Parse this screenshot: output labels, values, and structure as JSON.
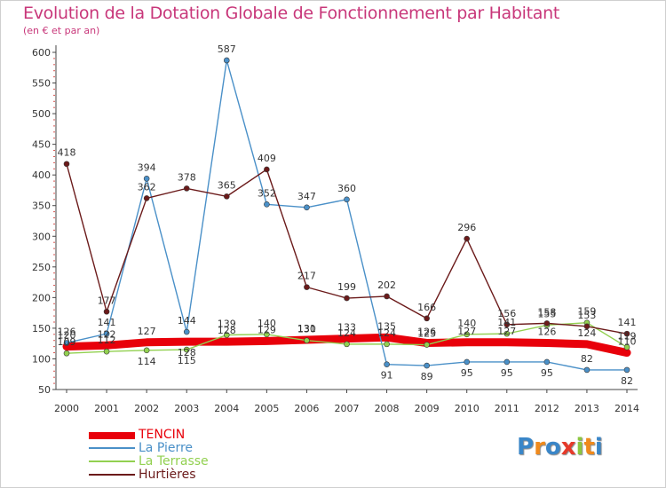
{
  "title": "Evolution de la Dotation Globale de Fonctionnement par Habitant",
  "subtitle": "(en € et par an)",
  "chart_data": {
    "type": "line",
    "x": [
      "2000",
      "2001",
      "2002",
      "2003",
      "2004",
      "2005",
      "2006",
      "2007",
      "2008",
      "2009",
      "2010",
      "2011",
      "2012",
      "2013",
      "2014"
    ],
    "ylim": [
      50,
      600
    ],
    "yticks": [
      "50",
      "100",
      "150",
      "200",
      "250",
      "300",
      "350",
      "400",
      "450",
      "500",
      "550",
      "600"
    ],
    "grid": false,
    "legend_position": "bottom-left",
    "series": [
      {
        "name": "TENCIN",
        "color": "#e8000a",
        "values": [
          120,
          122,
          127,
          128,
          128,
          129,
          131,
          133,
          135,
          126,
          127,
          127,
          126,
          124,
          110
        ],
        "labels": [
          "120",
          "122",
          "127",
          "128",
          "128",
          "129",
          "131",
          "133",
          "135",
          "126",
          "127",
          "127",
          "126",
          "124",
          "110"
        ],
        "label_above": [
          true,
          true,
          true,
          false,
          true,
          true,
          true,
          true,
          true,
          true,
          true,
          true,
          true,
          true,
          true
        ]
      },
      {
        "name": "La Pierre",
        "color": "#4a90c8",
        "values": [
          126,
          141,
          394,
          144,
          587,
          352,
          347,
          360,
          91,
          89,
          95,
          95,
          95,
          82,
          82
        ],
        "labels": [
          "126",
          "141",
          "394",
          "144",
          "587",
          "352",
          "347",
          "360",
          "91",
          "89",
          "95",
          "95",
          "95",
          "82",
          "82"
        ],
        "label_above": [
          true,
          true,
          true,
          true,
          true,
          true,
          true,
          true,
          false,
          false,
          false,
          false,
          false,
          true,
          false
        ]
      },
      {
        "name": "La Terrasse",
        "color": "#92d050",
        "values": [
          109,
          112,
          114,
          115,
          139,
          140,
          130,
          124,
          124,
          123,
          140,
          141,
          155,
          159,
          119
        ],
        "labels": [
          "109",
          "112",
          "114",
          "115",
          "139",
          "140",
          "130",
          "124",
          "124",
          "123",
          "140",
          "141",
          "155",
          "159",
          "119"
        ],
        "label_above": [
          true,
          true,
          false,
          false,
          true,
          true,
          true,
          true,
          true,
          true,
          true,
          true,
          true,
          true,
          true
        ]
      },
      {
        "name": "Hurtières",
        "color": "#6b1a1a",
        "values": [
          418,
          177,
          362,
          378,
          365,
          409,
          217,
          199,
          202,
          166,
          296,
          156,
          158,
          153,
          141
        ],
        "labels": [
          "418",
          "177",
          "362",
          "378",
          "365",
          "409",
          "217",
          "199",
          "202",
          "166",
          "296",
          "156",
          "158",
          "153",
          "141"
        ],
        "label_above": [
          true,
          true,
          true,
          true,
          true,
          true,
          true,
          true,
          true,
          true,
          true,
          true,
          true,
          true,
          true
        ]
      }
    ]
  },
  "legend": {
    "items": [
      {
        "label": "TENCIN",
        "color": "#e8000a"
      },
      {
        "label": "La Pierre",
        "color": "#4a90c8"
      },
      {
        "label": "La Terrasse",
        "color": "#92d050"
      },
      {
        "label": "Hurtières",
        "color": "#6b1a1a"
      }
    ]
  },
  "logo": {
    "text": "Proxiti",
    "letters": [
      "P",
      "r",
      "o",
      "x",
      "i",
      "t",
      "i"
    ],
    "colors": [
      "#3a86c8",
      "#f08a1c",
      "#3a86c8",
      "#e63a2a",
      "#8cc63f",
      "#f08a1c",
      "#3a86c8"
    ]
  }
}
